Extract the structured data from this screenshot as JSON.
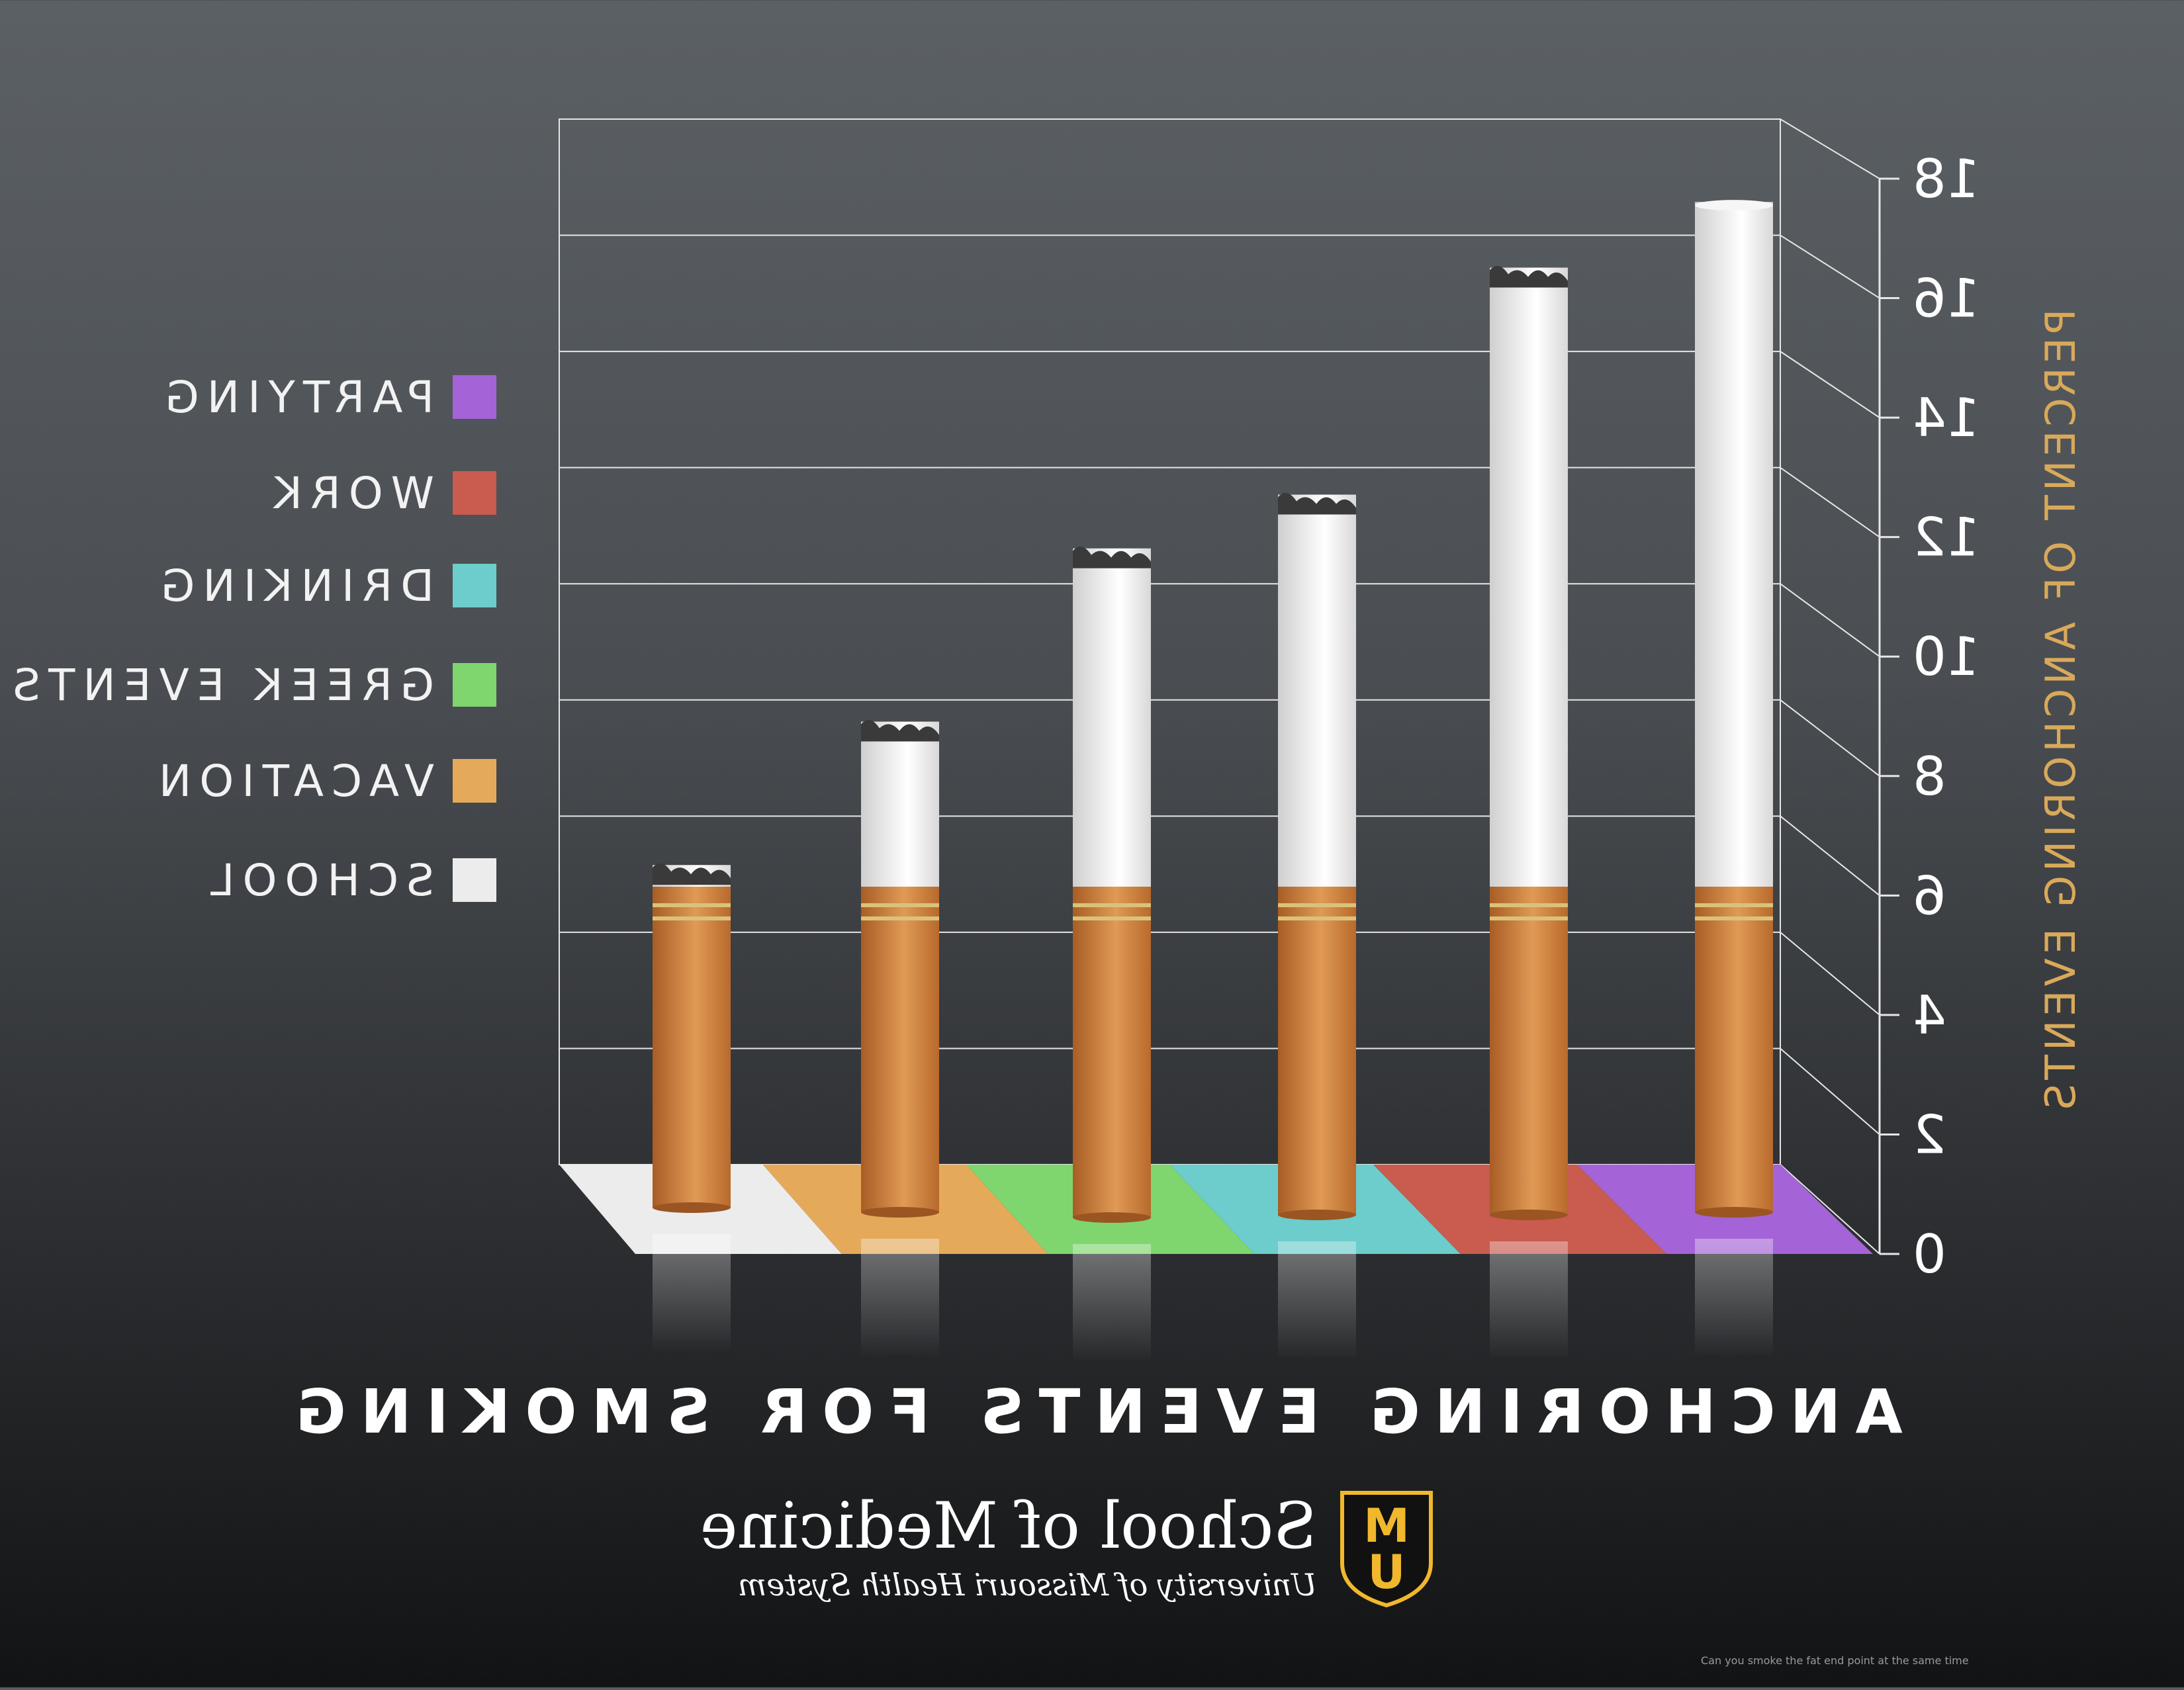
{
  "chart_data": {
    "type": "bar",
    "title": "ANCHORING EVENTS FOR SMOKING",
    "ylabel": "PERCENT OF ANCHORING EVENTS",
    "xlabel": "",
    "ylim": [
      0,
      18
    ],
    "yticks": [
      "0",
      "2",
      "4",
      "6",
      "8",
      "10",
      "12",
      "14",
      "16",
      "18"
    ],
    "grid": true,
    "categories": [
      "PARTYING",
      "WORK",
      "DRINKING",
      "GREEK EVENTS",
      "VACATION",
      "SCHOOL"
    ],
    "values": [
      17.5,
      16.4,
      12.6,
      11.7,
      8.8,
      6.4
    ],
    "colors": [
      "#a463d6",
      "#c95b4f",
      "#6ccdcc",
      "#7fd66e",
      "#e4aa5a",
      "#ececec"
    ],
    "mirrored": true
  },
  "legend": {
    "items": [
      {
        "label": "PARTYING",
        "color": "#a463d6"
      },
      {
        "label": "WORK",
        "color": "#c95b4f"
      },
      {
        "label": "DRINKING",
        "color": "#6ccdcc"
      },
      {
        "label": "GREEK EVENTS",
        "color": "#7fd66e"
      },
      {
        "label": "VACATION",
        "color": "#e4aa5a"
      },
      {
        "label": "SCHOOL",
        "color": "#ececec"
      }
    ]
  },
  "brand": {
    "name": "School of Medicine",
    "subtitle": "University of Missouri Health System",
    "shield_letters": "MU",
    "shield_color": "#f1b82d"
  },
  "footnote": "Can you smoke the fat end point at the same time",
  "colors": {
    "axis_label": "#d9a95a",
    "grid": "#e6e6e6",
    "filter": "#c97e3c",
    "paper": "#f4f4f4"
  }
}
